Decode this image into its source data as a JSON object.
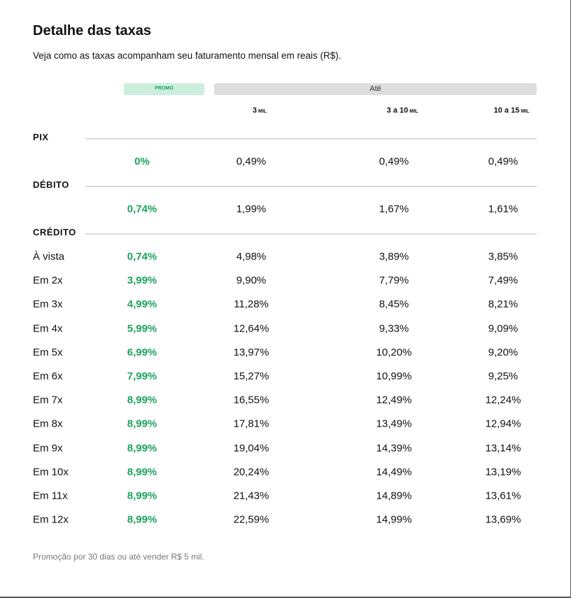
{
  "header": {
    "title": "Detalhe das taxas",
    "subtitle": "Veja como as taxas acompanham seu faturamento mensal em reais (R$)."
  },
  "table": {
    "promo_label": "PROMO",
    "range_label": "Até",
    "columns": [
      {
        "value": "3",
        "unit": "MIL"
      },
      {
        "value": "3 a 10",
        "unit": "MIL"
      },
      {
        "value": "10 a 15",
        "unit": "MIL"
      }
    ],
    "sections": [
      {
        "name": "PIX",
        "rows": [
          {
            "cells": [
              "0%",
              "0,49%",
              "0,49%",
              "0,49%"
            ]
          }
        ]
      },
      {
        "name": "DÉBITO",
        "rows": [
          {
            "cells": [
              "0,74%",
              "1,99%",
              "1,67%",
              "1,61%"
            ]
          }
        ]
      },
      {
        "name": "CRÉDITO",
        "rows": [
          {
            "label": "À vista",
            "cells": [
              "0,74%",
              "4,98%",
              "3,89%",
              "3,85%"
            ]
          },
          {
            "label": "Em 2x",
            "cells": [
              "3,99%",
              "9,90%",
              "7,79%",
              "7,49%"
            ]
          },
          {
            "label": "Em 3x",
            "cells": [
              "4,99%",
              "11,28%",
              "8,45%",
              "8,21%"
            ]
          },
          {
            "label": "Em 4x",
            "cells": [
              "5,99%",
              "12,64%",
              "9,33%",
              "9,09%"
            ]
          },
          {
            "label": "Em 5x",
            "cells": [
              "6,99%",
              "13,97%",
              "10,20%",
              "9,20%"
            ]
          },
          {
            "label": "Em 6x",
            "cells": [
              "7,99%",
              "15,27%",
              "10,99%",
              "9,25%"
            ]
          },
          {
            "label": "Em 7x",
            "cells": [
              "8,99%",
              "16,55%",
              "12,49%",
              "12,24%"
            ]
          },
          {
            "label": "Em 8x",
            "cells": [
              "8,99%",
              "17,81%",
              "13,49%",
              "12,94%"
            ]
          },
          {
            "label": "Em 9x",
            "cells": [
              "8,99%",
              "19,04%",
              "14,39%",
              "13,14%"
            ]
          },
          {
            "label": "Em 10x",
            "cells": [
              "8,99%",
              "20,24%",
              "14,49%",
              "13,19%"
            ]
          },
          {
            "label": "Em 11x",
            "cells": [
              "8,99%",
              "21,43%",
              "14,89%",
              "13,61%"
            ]
          },
          {
            "label": "Em 12x",
            "cells": [
              "8,99%",
              "22,59%",
              "14,99%",
              "13,69%"
            ]
          }
        ]
      }
    ]
  },
  "footnote": "Promoção por 30 dias ou até vender R$ 5 mil."
}
